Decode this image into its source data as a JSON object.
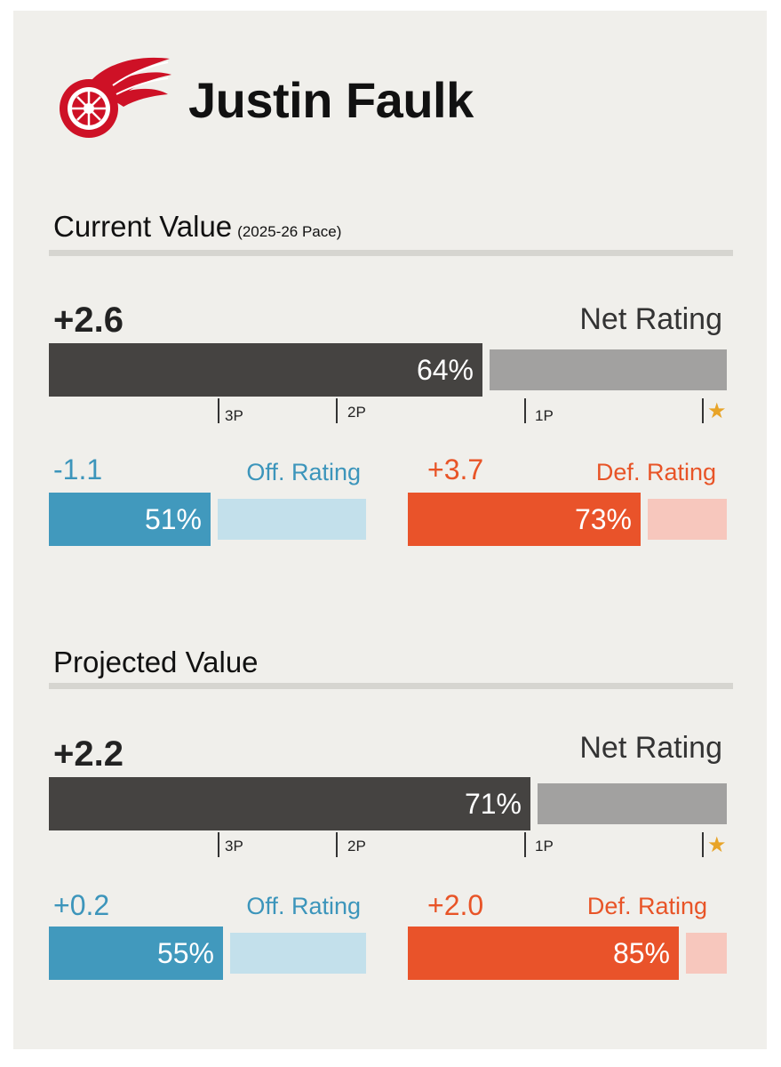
{
  "player": {
    "name": "Justin Faulk",
    "logo_icon": "detroit-red-wings-logo"
  },
  "colors": {
    "net_fill": "#454341",
    "net_track": "#a2a1a0",
    "off_fill": "#4199bd",
    "off_track": "#c3e0eb",
    "def_fill": "#e9532a",
    "def_track": "#f7c7bd",
    "star": "#e8a428"
  },
  "current": {
    "title": "Current Value",
    "subtitle": "(2025-26 Pace)",
    "net": {
      "value": "+2.6",
      "label": "Net Rating",
      "pct_text": "64%",
      "pct": 64
    },
    "off": {
      "value": "-1.1",
      "label": "Off. Rating",
      "pct_text": "51%",
      "pct": 51
    },
    "def": {
      "value": "+3.7",
      "label": "Def. Rating",
      "pct_text": "73%",
      "pct": 73
    }
  },
  "projected": {
    "title": "Projected Value",
    "net": {
      "value": "+2.2",
      "label": "Net Rating",
      "pct_text": "71%",
      "pct": 71
    },
    "off": {
      "value": "+0.2",
      "label": "Off. Rating",
      "pct_text": "55%",
      "pct": 55
    },
    "def": {
      "value": "+2.0",
      "label": "Def. Rating",
      "pct_text": "85%",
      "pct": 85
    }
  },
  "chart_data": {
    "type": "bar",
    "orientation": "horizontal",
    "axis": {
      "range": [
        0,
        100
      ],
      "unit": "percentile",
      "markers": [
        {
          "label": "3P",
          "value": 25
        },
        {
          "label": "2P",
          "value": 42
        },
        {
          "label": "1P",
          "value": 69
        },
        {
          "label": "★",
          "value": 95
        }
      ]
    },
    "series": [
      {
        "name": "Current Value",
        "categories": [
          "Net Rating",
          "Off. Rating",
          "Def. Rating"
        ],
        "values": [
          64,
          51,
          73
        ],
        "ratings": [
          2.6,
          -1.1,
          3.7
        ]
      },
      {
        "name": "Projected Value",
        "categories": [
          "Net Rating",
          "Off. Rating",
          "Def. Rating"
        ],
        "values": [
          71,
          55,
          85
        ],
        "ratings": [
          2.2,
          0.2,
          2.0
        ]
      }
    ]
  }
}
